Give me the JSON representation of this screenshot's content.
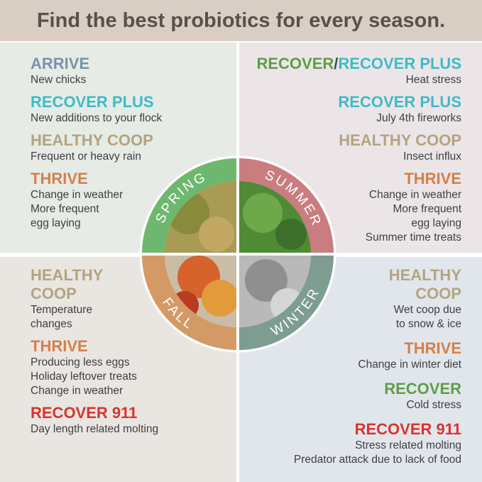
{
  "header": {
    "title": "Find the best probiotics for every season."
  },
  "quadrants": [
    {
      "season": "SPRING",
      "items": [
        {
          "title": [
            [
              {
                "text": "ARRIVE",
                "color": "#7c91aa"
              }
            ]
          ],
          "lines": [
            "New chicks"
          ]
        },
        {
          "title": [
            [
              {
                "text": "RECOVER PLUS",
                "color": "#3cbcc6"
              }
            ]
          ],
          "lines": [
            "New additions to your flock"
          ]
        },
        {
          "title": [
            [
              {
                "text": "HEALTHY COOP",
                "color": "#b3a480"
              }
            ]
          ],
          "lines": [
            "Frequent or heavy rain"
          ]
        },
        {
          "title": [
            [
              {
                "text": "THRIVE",
                "color": "#d2804a"
              }
            ]
          ],
          "lines": [
            "Change in weather",
            "More frequent",
            "egg laying"
          ]
        }
      ]
    },
    {
      "season": "SUMMER",
      "items": [
        {
          "title": [
            [
              {
                "text": "RECOVER",
                "color": "#5f9e45"
              },
              {
                "text": "/",
                "color": "#4a4a4a"
              },
              {
                "text": "RECOVER PLUS",
                "color": "#3cbcc6"
              }
            ]
          ],
          "lines": [
            "Heat stress"
          ]
        },
        {
          "title": [
            [
              {
                "text": "RECOVER PLUS",
                "color": "#3cbcc6"
              }
            ]
          ],
          "lines": [
            "July 4th fireworks"
          ]
        },
        {
          "title": [
            [
              {
                "text": "HEALTHY COOP",
                "color": "#b3a480"
              }
            ]
          ],
          "lines": [
            "Insect influx"
          ]
        },
        {
          "title": [
            [
              {
                "text": "THRIVE",
                "color": "#d2804a"
              }
            ]
          ],
          "lines": [
            "Change in weather",
            "More frequent",
            "egg laying",
            "Summer time treats"
          ]
        }
      ]
    },
    {
      "season": "FALL",
      "items": [
        {
          "title": [
            [
              {
                "text": "HEALTHY",
                "color": "#b3a480"
              }
            ],
            [
              {
                "text": "COOP",
                "color": "#b3a480"
              }
            ]
          ],
          "lines": [
            "Temperature",
            "changes"
          ]
        },
        {
          "title": [
            [
              {
                "text": "THRIVE",
                "color": "#d2804a"
              }
            ]
          ],
          "lines": [
            "Producing less eggs",
            "Holiday leftover treats",
            "Change in weather"
          ]
        },
        {
          "title": [
            [
              {
                "text": "RECOVER 911",
                "color": "#d8342f"
              }
            ]
          ],
          "lines": [
            "Day length related molting"
          ]
        }
      ]
    },
    {
      "season": "WINTER",
      "items": [
        {
          "title": [
            [
              {
                "text": "HEALTHY",
                "color": "#b3a480"
              }
            ],
            [
              {
                "text": "COOP",
                "color": "#b3a480"
              }
            ]
          ],
          "lines": [
            "Wet coop due",
            "to snow & ice"
          ]
        },
        {
          "title": [
            [
              {
                "text": "THRIVE",
                "color": "#d2804a"
              }
            ]
          ],
          "lines": [
            "Change in winter diet"
          ]
        },
        {
          "title": [
            [
              {
                "text": "RECOVER",
                "color": "#5f9e45"
              }
            ]
          ],
          "lines": [
            "Cold stress"
          ]
        },
        {
          "title": [
            [
              {
                "text": "RECOVER 911",
                "color": "#d8342f"
              }
            ]
          ],
          "lines": [
            "Stress related molting",
            "Predator attack due to lack of food"
          ]
        }
      ]
    }
  ]
}
